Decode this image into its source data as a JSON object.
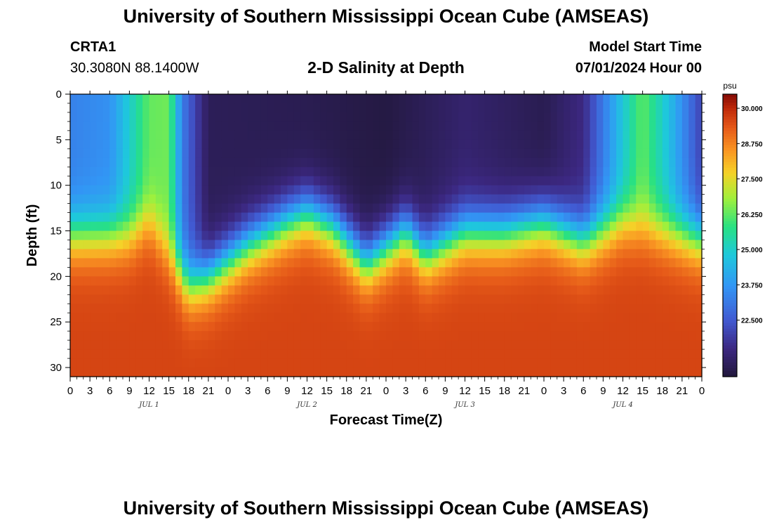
{
  "page": {
    "title": "University of Southern Mississippi Ocean Cube (AMSEAS)",
    "station": "CRTA1",
    "coords": "30.3080N  88.1400W",
    "plot_title": "2-D Salinity at Depth",
    "model_label": "Model Start Time",
    "model_time": "07/01/2024 Hour 00",
    "footer_title": "University of Southern Mississippi Ocean Cube (AMSEAS)"
  },
  "chart_data": {
    "type": "heatmap",
    "title": "2-D Salinity at Depth",
    "xlabel": "Forecast Time(Z)",
    "ylabel": "Depth (ft)",
    "xlim": [
      0,
      96
    ],
    "ylim": [
      0,
      31
    ],
    "x_ticks": [
      0,
      3,
      6,
      9,
      12,
      15,
      18,
      21,
      24,
      27,
      30,
      33,
      36,
      39,
      42,
      45,
      48,
      51,
      54,
      57,
      60,
      63,
      66,
      69,
      72,
      75,
      78,
      81,
      84,
      87,
      90,
      93,
      96
    ],
    "x_tick_labels": [
      "0",
      "3",
      "6",
      "9",
      "12",
      "15",
      "18",
      "21",
      "0",
      "3",
      "6",
      "9",
      "12",
      "15",
      "18",
      "21",
      "0",
      "3",
      "6",
      "9",
      "12",
      "15",
      "18",
      "21",
      "0",
      "3",
      "6",
      "9",
      "12",
      "15",
      "18",
      "21",
      "0"
    ],
    "day_labels": [
      {
        "x": 12,
        "label": "JUL 1"
      },
      {
        "x": 36,
        "label": "JUL 2"
      },
      {
        "x": 60,
        "label": "JUL 3"
      },
      {
        "x": 84,
        "label": "JUL 4"
      }
    ],
    "y_ticks": [
      0,
      5,
      10,
      15,
      20,
      25,
      30
    ],
    "y_tick_labels": [
      "0",
      "5",
      "10",
      "15",
      "20",
      "25",
      "30"
    ],
    "colorbar": {
      "unit": "psu",
      "range": [
        20.5,
        30.5
      ],
      "ticks": [
        30.0,
        28.75,
        27.5,
        26.25,
        25.0,
        23.75,
        22.5
      ],
      "tick_labels": [
        "30.000",
        "28.750",
        "27.500",
        "26.250",
        "25.000",
        "23.750",
        "22.500"
      ]
    },
    "surface_salinity_psu": [
      {
        "t": 0,
        "value": 23.3
      },
      {
        "t": 6,
        "value": 23.6
      },
      {
        "t": 12,
        "value": 26.3
      },
      {
        "t": 15,
        "value": 26.4
      },
      {
        "t": 17,
        "value": 23.2
      },
      {
        "t": 21,
        "value": 20.9
      },
      {
        "t": 36,
        "value": 20.8
      },
      {
        "t": 48,
        "value": 20.6
      },
      {
        "t": 60,
        "value": 21.2
      },
      {
        "t": 72,
        "value": 20.8
      },
      {
        "t": 78,
        "value": 21.5
      },
      {
        "t": 84,
        "value": 24.8
      },
      {
        "t": 87,
        "value": 26.3
      },
      {
        "t": 91,
        "value": 24.6
      },
      {
        "t": 96,
        "value": 22.0
      }
    ],
    "halocline_depth_ft": [
      {
        "t": 0,
        "depth": 15.5
      },
      {
        "t": 9,
        "depth": 15.5
      },
      {
        "t": 12,
        "depth": 14
      },
      {
        "t": 18,
        "depth": 21
      },
      {
        "t": 21,
        "depth": 20
      },
      {
        "t": 27,
        "depth": 16.5
      },
      {
        "t": 33,
        "depth": 14
      },
      {
        "t": 36,
        "depth": 13
      },
      {
        "t": 40,
        "depth": 14.5
      },
      {
        "t": 45,
        "depth": 18.5
      },
      {
        "t": 51,
        "depth": 15
      },
      {
        "t": 54,
        "depth": 17.5
      },
      {
        "t": 60,
        "depth": 15
      },
      {
        "t": 66,
        "depth": 15
      },
      {
        "t": 72,
        "depth": 14
      },
      {
        "t": 78,
        "depth": 16
      },
      {
        "t": 84,
        "depth": 14
      },
      {
        "t": 96,
        "depth": 16
      }
    ],
    "bottom_salinity_psu": 29.6
  }
}
